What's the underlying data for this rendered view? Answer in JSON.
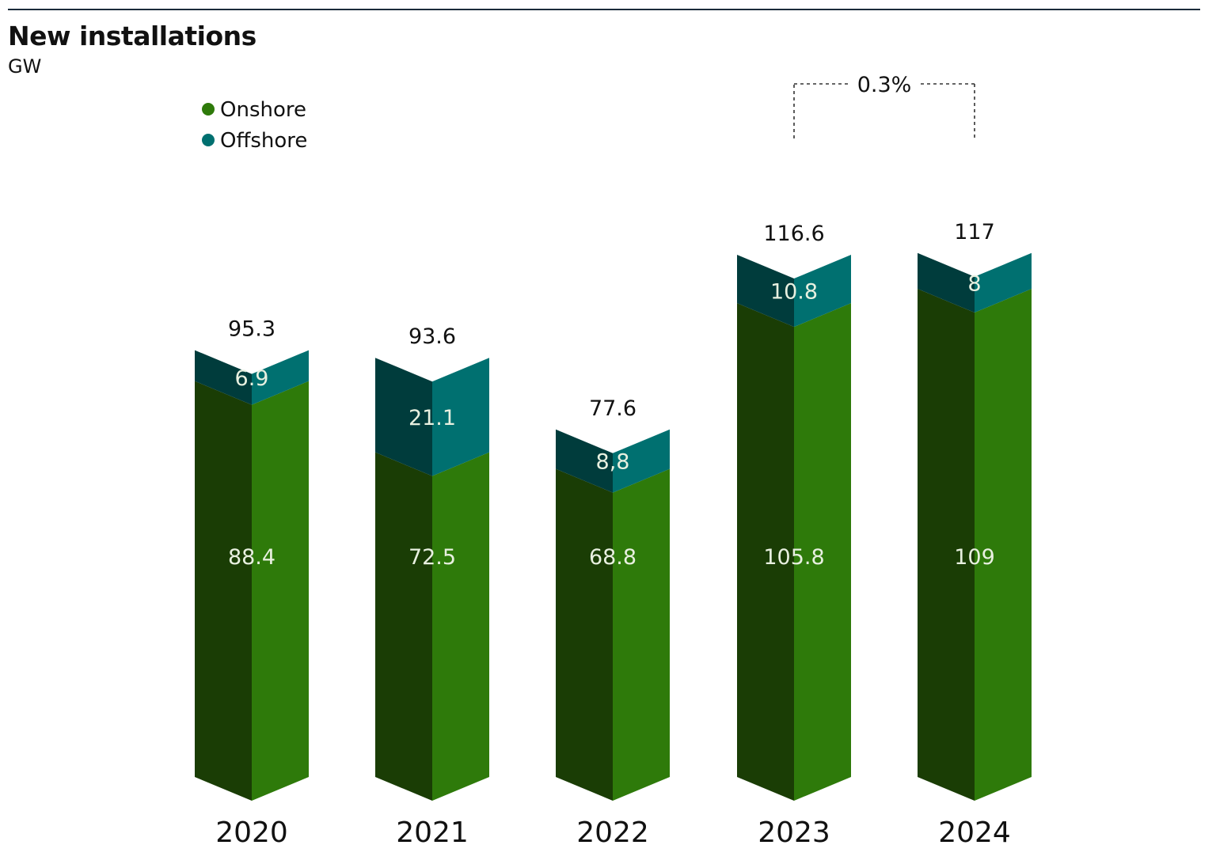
{
  "chart_data": {
    "type": "bar",
    "stacked": true,
    "title": "New installations",
    "ylabel": "GW",
    "categories": [
      "2020",
      "2021",
      "2022",
      "2023",
      "2024"
    ],
    "series": [
      {
        "name": "Onshore",
        "color": "#2e7a0a",
        "shade": "#1a3d05",
        "values": [
          88.4,
          72.5,
          68.8,
          105.8,
          109
        ],
        "labels": [
          "88.4",
          "72.5",
          "68.8",
          "105.8",
          "109"
        ]
      },
      {
        "name": "Offshore",
        "color": "#007070",
        "shade": "#003c3c",
        "values": [
          6.9,
          21.1,
          8.8,
          10.8,
          8
        ],
        "labels": [
          "6.9",
          "21.1",
          "8,8",
          "10.8",
          "8"
        ]
      }
    ],
    "totals": [
      "95.3",
      "93.6",
      "77.6",
      "116.6",
      "117"
    ],
    "annotation": {
      "text": "0.3%",
      "from": "2023",
      "to": "2024"
    },
    "ylim": [
      0,
      120
    ],
    "legend": "top-left"
  }
}
